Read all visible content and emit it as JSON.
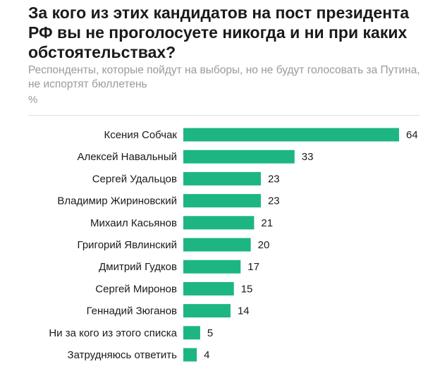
{
  "chart_data": {
    "type": "bar",
    "orientation": "horizontal",
    "title": "За кого из этих кандидатов на пост президента РФ вы не проголосуете никогда и ни при каких обстоятельствах?",
    "subtitle": "Респонденты, которые пойдут на выборы, но не будут голосовать за Путина, не испортят бюллетень",
    "unit": "%",
    "categories": [
      "Ксения Собчак",
      "Алексей Навальный",
      "Сергей Удальцов",
      "Владимир Жириновский",
      "Михаил Касьянов",
      "Григорий Явлинский",
      "Дмитрий Гудков",
      "Сергей Миронов",
      "Геннадий Зюганов",
      "Ни за кого из этого списка",
      "Затрудняюсь ответить"
    ],
    "values": [
      64,
      33,
      23,
      23,
      21,
      20,
      17,
      15,
      14,
      5,
      4
    ],
    "xlim": [
      0,
      64
    ],
    "bar_color": "#1db682",
    "grid": false
  }
}
